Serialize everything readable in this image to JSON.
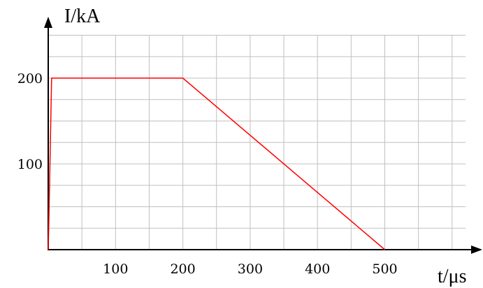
{
  "chart_data": {
    "type": "line",
    "title": "",
    "xlabel": "t/μs",
    "ylabel": "I/kA",
    "xlim": [
      0,
      620
    ],
    "ylim": [
      0,
      250
    ],
    "x_ticks": [
      100,
      200,
      300,
      400,
      500
    ],
    "y_ticks": [
      100,
      200
    ],
    "grid": true,
    "grid_step_x": 50,
    "grid_step_y": 25,
    "line_color": "#ff0000",
    "grid_color": "#c0c0c0",
    "series": [
      {
        "x": [
          0,
          1,
          5,
          200,
          500
        ],
        "y": [
          0,
          35,
          200,
          200,
          0
        ]
      }
    ]
  }
}
